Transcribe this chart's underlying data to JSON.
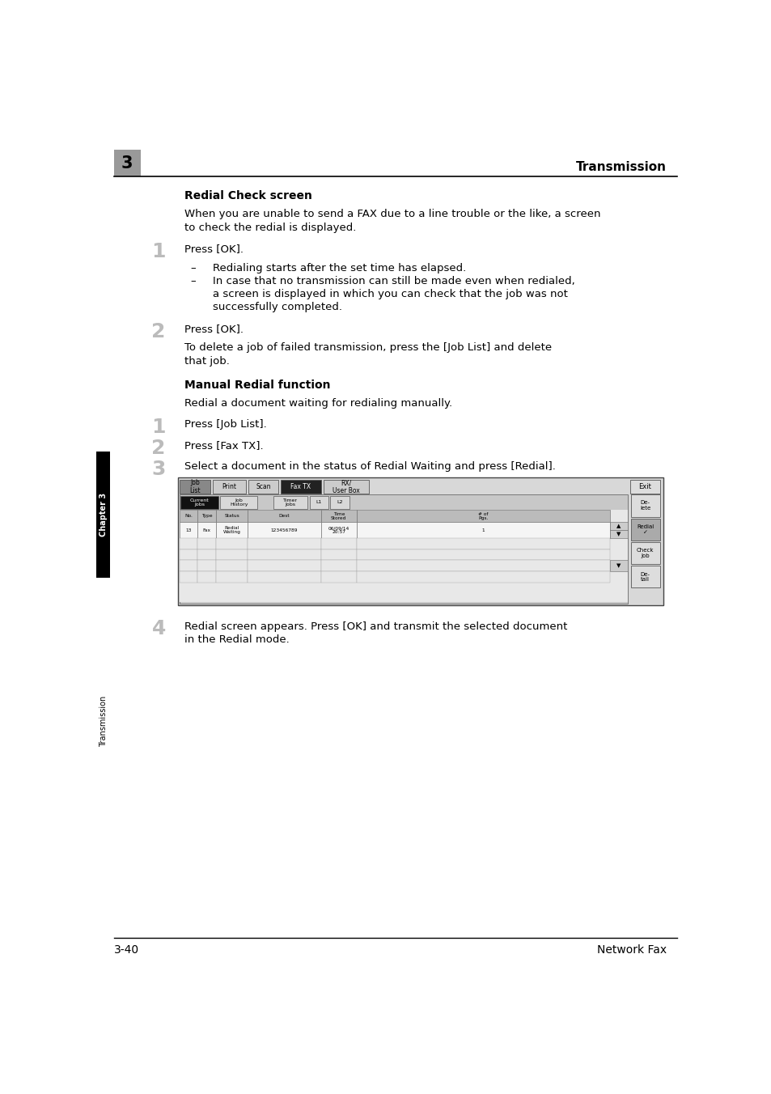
{
  "page_width": 9.54,
  "page_height": 13.52,
  "bg_color": "#ffffff",
  "header_chapter_num": "3",
  "header_chapter_bg": "#999999",
  "header_title": "Transmission",
  "footer_left": "3-40",
  "footer_right": "Network Fax",
  "sidebar_chapter_text": "Chapter 3",
  "sidebar_transmission_text": "Transmission",
  "sidebar_chapter_bg": "#000000",
  "sidebar_chapter_text_color": "#ffffff",
  "sidebar_trans_text_color": "#000000",
  "section1_title": "Redial Check screen",
  "section1_intro_l1": "When you are unable to send a FAX due to a line trouble or the like, a screen",
  "section1_intro_l2": "to check the redial is displayed.",
  "step1_num": "1",
  "step1_text": "Press [OK].",
  "bullet1": "Redialing starts after the set time has elapsed.",
  "bullet2_l1": "In case that no transmission can still be made even when redialed,",
  "bullet2_l2": "a screen is displayed in which you can check that the job was not",
  "bullet2_l3": "successfully completed.",
  "step2_num": "2",
  "step2_text": "Press [OK].",
  "step2_body_l1": "To delete a job of failed transmission, press the [Job List] and delete",
  "step2_body_l2": "that job.",
  "section2_title": "Manual Redial function",
  "section2_intro": "Redial a document waiting for redialing manually.",
  "mstep1_num": "1",
  "mstep1_text": "Press [Job List].",
  "mstep2_num": "2",
  "mstep2_text": "Press [Fax TX].",
  "mstep3_num": "3",
  "mstep3_text": "Select a document in the status of Redial Waiting and press [Redial].",
  "step4_num": "4",
  "step4_text_l1": "Redial screen appears. Press [OK] and transmit the selected document",
  "step4_text_l2": "in the Redial mode.",
  "text_color": "#000000",
  "step_num_color": "#bbbbbb",
  "body_fontsize": 9.5,
  "step_num_fontsize": 18,
  "section_title_fontsize": 10
}
